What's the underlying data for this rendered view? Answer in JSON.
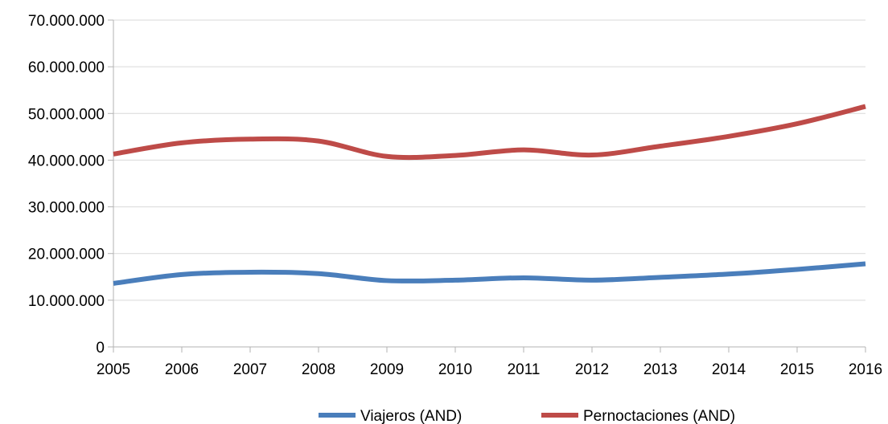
{
  "chart_data": {
    "type": "line",
    "title": "",
    "xlabel": "",
    "ylabel": "",
    "categories": [
      "2005",
      "2006",
      "2007",
      "2008",
      "2009",
      "2010",
      "2011",
      "2012",
      "2013",
      "2014",
      "2015",
      "2016"
    ],
    "ylim": [
      0,
      70000000
    ],
    "yticks": [
      0,
      10000000,
      20000000,
      30000000,
      40000000,
      50000000,
      60000000,
      70000000
    ],
    "ytick_labels": [
      "0",
      "10.000.000",
      "20.000.000",
      "30.000.000",
      "40.000.000",
      "50.000.000",
      "60.000.000",
      "70.000.000"
    ],
    "grid": true,
    "legend": "bottom",
    "series": [
      {
        "name": "Viajeros (AND)",
        "color": "#4a7ebb",
        "values": [
          13600000,
          15500000,
          16000000,
          15700000,
          14200000,
          14300000,
          14800000,
          14300000,
          14900000,
          15600000,
          16600000,
          17800000
        ]
      },
      {
        "name": "Pernoctaciones (AND)",
        "color": "#be4b48",
        "values": [
          41300000,
          43700000,
          44500000,
          44100000,
          40800000,
          41000000,
          42200000,
          41100000,
          43000000,
          45100000,
          47800000,
          51500000
        ]
      }
    ]
  }
}
